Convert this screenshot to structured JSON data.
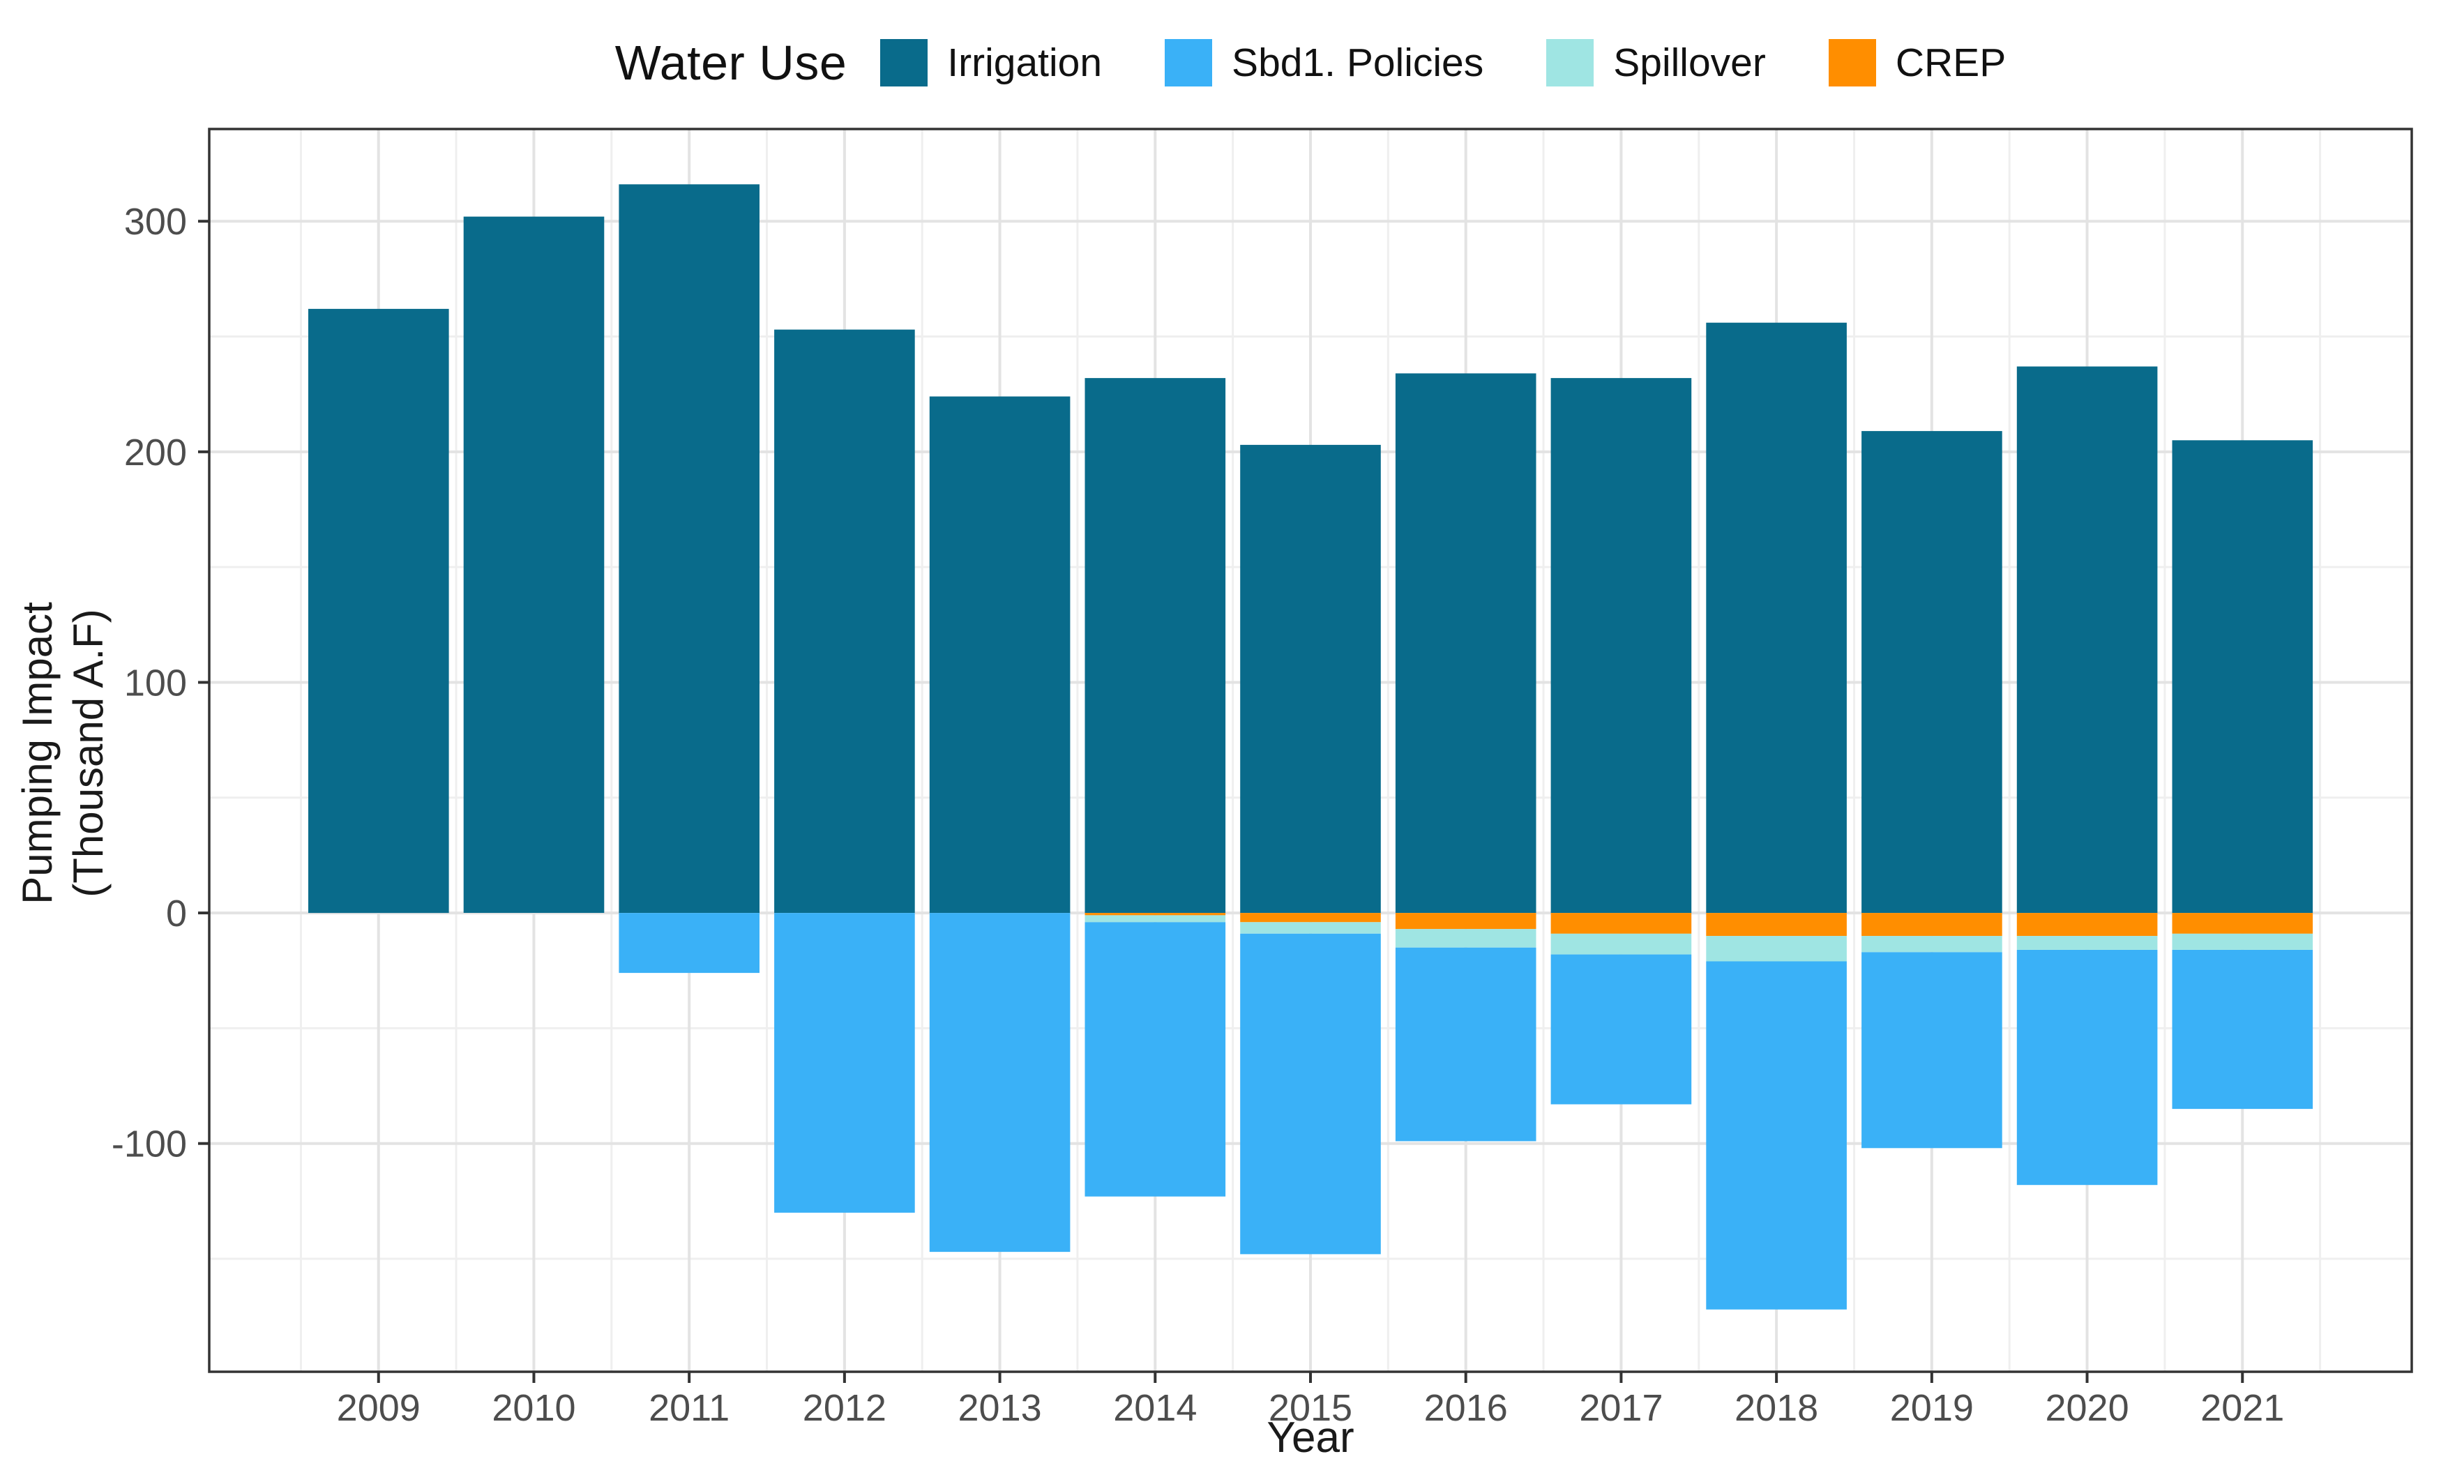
{
  "legend": {
    "title": "Water Use",
    "items": [
      {
        "label": "Irrigation",
        "color": "#096b8b"
      },
      {
        "label": "Sbd1. Policies",
        "color": "#3ab1f7"
      },
      {
        "label": "Spillover",
        "color": "#9fe5e3"
      },
      {
        "label": "CREP",
        "color": "#ff8e00"
      }
    ]
  },
  "axes": {
    "x_title": "Year",
    "y_title": "Pumping Impact\n(Thousand A.F)",
    "y_tick_labels": [
      "300",
      "200",
      "100",
      "0",
      "-100"
    ]
  },
  "chart_data": {
    "type": "bar",
    "stacked": true,
    "title": "",
    "xlabel": "Year",
    "ylabel": "Pumping Impact (Thousand A.F)",
    "categories": [
      "2009",
      "2010",
      "2011",
      "2012",
      "2013",
      "2014",
      "2015",
      "2016",
      "2017",
      "2018",
      "2019",
      "2020",
      "2021"
    ],
    "series": [
      {
        "name": "Irrigation",
        "color": "#096b8b",
        "values": [
          262,
          302,
          316,
          253,
          224,
          232,
          203,
          234,
          232,
          256,
          209,
          237,
          205
        ]
      },
      {
        "name": "Sbd1. Policies",
        "color": "#3ab1f7",
        "values": [
          0,
          0,
          -26,
          -130,
          -147,
          -119,
          -139,
          -84,
          -65,
          -151,
          -85,
          -102,
          -69
        ]
      },
      {
        "name": "Spillover",
        "color": "#9fe5e3",
        "values": [
          0,
          0,
          0,
          0,
          0,
          -3,
          -5,
          -8,
          -9,
          -11,
          -7,
          -6,
          -7
        ]
      },
      {
        "name": "CREP",
        "color": "#ff8e00",
        "values": [
          0,
          0,
          0,
          0,
          0,
          -1,
          -4,
          -7,
          -9,
          -10,
          -10,
          -10,
          -9
        ]
      }
    ],
    "negative_stack_order": [
      "CREP",
      "Spillover",
      "Sbd1. Policies"
    ],
    "ylim": [
      -199,
      340
    ],
    "y_major_ticks": [
      -100,
      0,
      100,
      200,
      300
    ],
    "y_minor_ticks": [
      -150,
      -50,
      50,
      150,
      250
    ],
    "grid": true,
    "grid_major_color": "#e3e3e3",
    "grid_minor_color": "#efefef",
    "panel_border_color": "#333333",
    "tick_color": "#333333",
    "tick_label_color": "#4d4d4d",
    "legend_position": "top"
  }
}
